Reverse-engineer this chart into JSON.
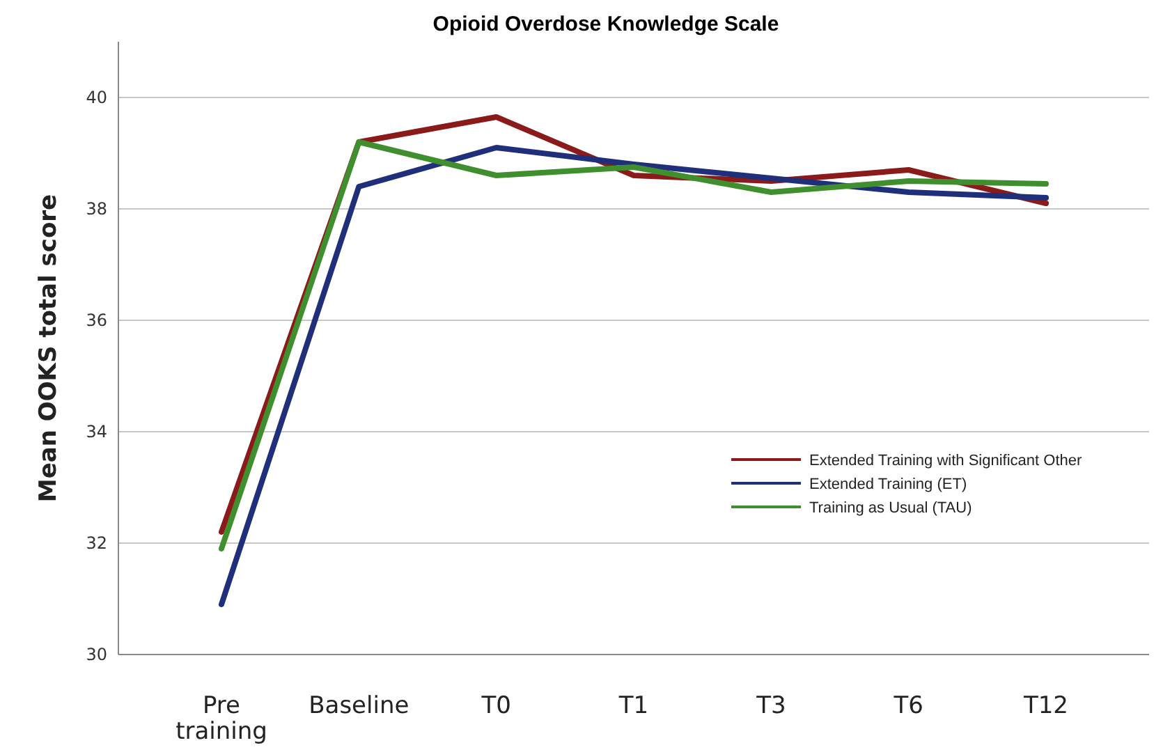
{
  "chart_data": {
    "type": "line",
    "title": "Opioid Overdose Knowledge Scale",
    "ylabel": "Mean OOKS total score",
    "categories": [
      "Pre training",
      "Baseline",
      "T0",
      "T1",
      "T3",
      "T6",
      "T12"
    ],
    "series": [
      {
        "name": "Extended Training with Significant Other",
        "color": "#8b1a1a",
        "values": [
          32.2,
          39.2,
          39.65,
          38.6,
          38.5,
          38.7,
          38.1
        ]
      },
      {
        "name": "Extended Training (ET)",
        "color": "#1f2f7a",
        "values": [
          30.9,
          38.4,
          39.1,
          38.8,
          38.55,
          38.3,
          38.2
        ]
      },
      {
        "name": "Training as Usual (TAU)",
        "color": "#3f8f2f",
        "values": [
          31.9,
          39.2,
          38.6,
          38.75,
          38.3,
          38.5,
          38.45
        ]
      }
    ],
    "ylim": [
      30,
      41
    ],
    "yticks": [
      30,
      32,
      34,
      36,
      38,
      40
    ],
    "grid": "y",
    "legend": "right",
    "marker": "none",
    "line_style": "solid"
  }
}
